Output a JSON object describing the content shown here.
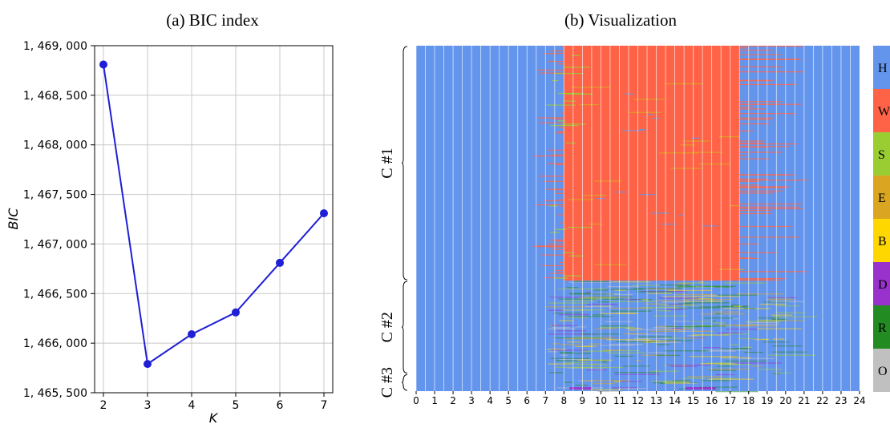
{
  "chart_data": [
    {
      "type": "line",
      "title": "(a) BIC index",
      "xlabel": "K",
      "ylabel": "BIC",
      "x": [
        2,
        3,
        4,
        5,
        6,
        7
      ],
      "series": [
        {
          "values": [
            1468810,
            1465790,
            1466090,
            1466310,
            1466810,
            1467310
          ]
        }
      ],
      "xticks": [
        2,
        3,
        4,
        5,
        6,
        7
      ],
      "yticks": [
        1465500,
        1466000,
        1466500,
        1467000,
        1467500,
        1468000,
        1468500,
        1469000
      ],
      "ytick_labels": [
        "1, 465, 500",
        "1, 466, 000",
        "1, 466, 500",
        "1, 467, 000",
        "1, 467, 500",
        "1, 468, 000",
        "1, 468, 500",
        "1, 469, 000"
      ],
      "xlim": [
        1.8,
        7.2
      ],
      "ylim": [
        1465500,
        1469000
      ],
      "grid": true,
      "line_color": "#1f1fd6"
    },
    {
      "type": "heatmap",
      "title": "(b) Visualization",
      "xticks": [
        "0",
        "1",
        "2",
        "3",
        "4",
        "5",
        "6",
        "7",
        "8",
        "9",
        "10",
        "11",
        "12",
        "13",
        "14",
        "15",
        "16",
        "17",
        "18",
        "19",
        "20",
        "21",
        "22",
        "23",
        "24"
      ],
      "xlim": [
        0,
        24
      ],
      "clusters": [
        {
          "label": "C #1",
          "share": 0.68,
          "active_start_hour": 8,
          "active_end_hour": 17.5,
          "dominant": "W"
        },
        {
          "label": "C #2",
          "share": 0.27,
          "active_start_hour": 7.5,
          "active_end_hour": 20,
          "dominant": "H"
        },
        {
          "label": "C #3",
          "share": 0.05,
          "active_start_hour": 8,
          "active_end_hour": 17,
          "dominant": "H"
        }
      ],
      "legend_position": "right",
      "legend": [
        {
          "label": "H",
          "color": "#6495ed"
        },
        {
          "label": "W",
          "color": "#ff6347"
        },
        {
          "label": "S",
          "color": "#9acd32"
        },
        {
          "label": "E",
          "color": "#daa520"
        },
        {
          "label": "B",
          "color": "#ffd700"
        },
        {
          "label": "D",
          "color": "#9932cc"
        },
        {
          "label": "R",
          "color": "#228b22"
        },
        {
          "label": "O",
          "color": "#c0c0c0"
        }
      ]
    }
  ]
}
